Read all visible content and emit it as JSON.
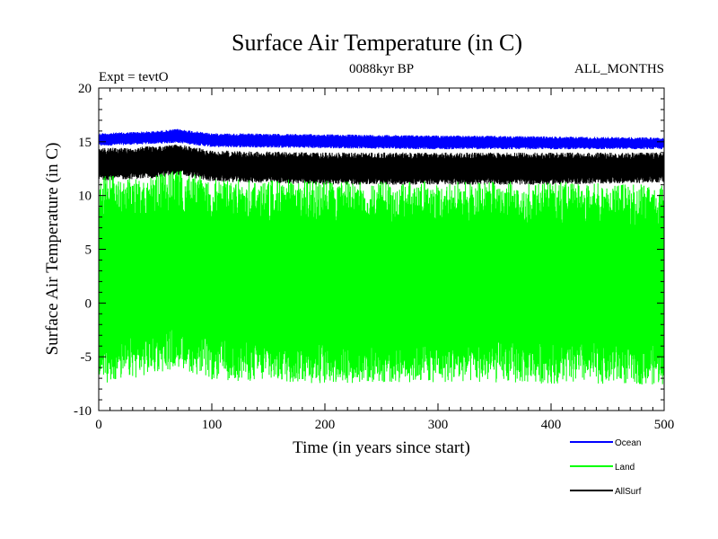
{
  "chart_data": {
    "type": "line",
    "title": "Surface Air Temperature (in C)",
    "subtitle_left": "Expt = tevtO",
    "subtitle_center": "0088kyr BP",
    "subtitle_right": "ALL_MONTHS",
    "xlabel": "Time (in years since start)",
    "ylabel": "Surface Air Temperature (in C)",
    "xlim": [
      0,
      500
    ],
    "ylim": [
      -10,
      20
    ],
    "x_ticks": [
      0,
      100,
      200,
      300,
      400,
      500
    ],
    "y_ticks": [
      -10,
      -5,
      0,
      5,
      10,
      15,
      20
    ],
    "grid": false,
    "legend_position": "bottom-right",
    "series": [
      {
        "name": "Ocean",
        "color": "#0000ff",
        "x": [
          0,
          50,
          70,
          100,
          200,
          300,
          400,
          500
        ],
        "upper": [
          15.8,
          16.0,
          16.2,
          15.8,
          15.7,
          15.6,
          15.5,
          15.4
        ],
        "lower": [
          14.6,
          14.8,
          14.9,
          14.5,
          14.4,
          14.3,
          14.3,
          14.3
        ]
      },
      {
        "name": "AllSurf",
        "color": "#000000",
        "x": [
          0,
          50,
          70,
          100,
          200,
          300,
          400,
          500
        ],
        "upper": [
          14.4,
          14.6,
          14.8,
          14.2,
          14.0,
          14.0,
          14.0,
          14.0
        ],
        "lower": [
          11.4,
          11.6,
          11.9,
          11.3,
          11.0,
          11.0,
          11.0,
          11.2
        ]
      },
      {
        "name": "Land",
        "color": "#00ff00",
        "x": [
          0,
          50,
          70,
          100,
          200,
          300,
          400,
          500
        ],
        "upper": [
          11.8,
          12.0,
          12.4,
          11.6,
          11.4,
          11.3,
          11.3,
          11.0
        ],
        "lower": [
          -7.6,
          -6.6,
          -6.0,
          -7.2,
          -7.5,
          -7.4,
          -7.5,
          -7.6
        ]
      }
    ],
    "legend": [
      {
        "name": "Ocean",
        "color": "#0000ff"
      },
      {
        "name": "Land",
        "color": "#00ff00"
      },
      {
        "name": "AllSurf",
        "color": "#000000"
      }
    ]
  }
}
